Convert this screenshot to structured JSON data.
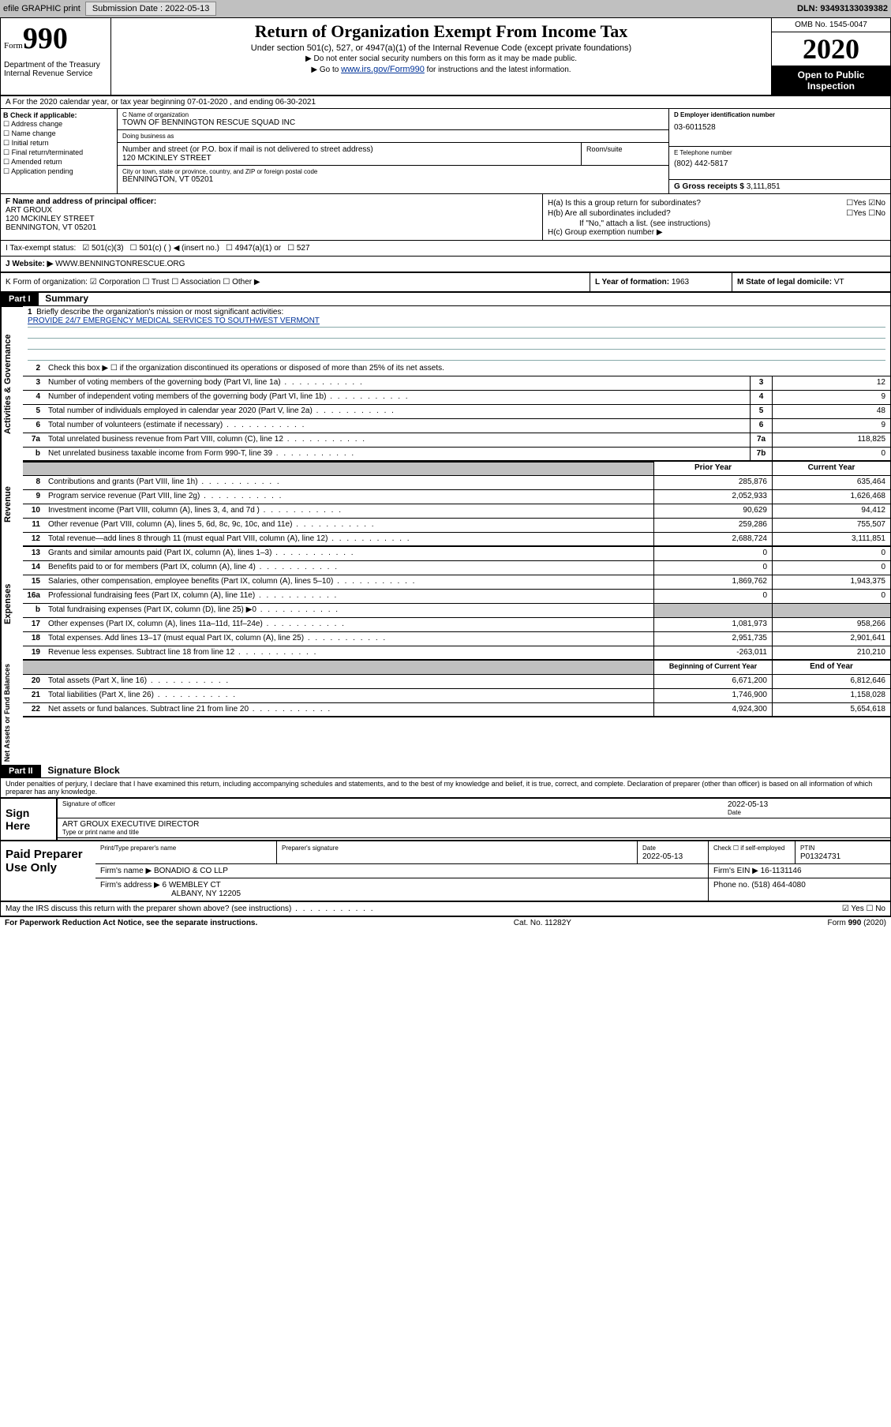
{
  "toolbar": {
    "efile": "efile GRAPHIC print",
    "submission_label": "Submission Date : 2022-05-13",
    "dln_label": "DLN:",
    "dln": "93493133039382"
  },
  "header": {
    "form_word": "Form",
    "form_num": "990",
    "dept": "Department of the Treasury\nInternal Revenue Service",
    "title": "Return of Organization Exempt From Income Tax",
    "subtitle": "Under section 501(c), 527, or 4947(a)(1) of the Internal Revenue Code (except private foundations)",
    "note1": "▶ Do not enter social security numbers on this form as it may be made public.",
    "note2_pre": "▶ Go to ",
    "note2_link": "www.irs.gov/Form990",
    "note2_post": " for instructions and the latest information.",
    "omb": "OMB No. 1545-0047",
    "year": "2020",
    "open": "Open to Public Inspection"
  },
  "line_a": "A For the 2020 calendar year, or tax year beginning 07-01-2020   , and ending 06-30-2021",
  "block_b": {
    "title": "B Check if applicable:",
    "opts": [
      "Address change",
      "Name change",
      "Initial return",
      "Final return/terminated",
      "Amended return",
      "Application pending"
    ]
  },
  "block_c": {
    "name_lbl": "C Name of organization",
    "name": "TOWN OF BENNINGTON RESCUE SQUAD INC",
    "dba_lbl": "Doing business as",
    "dba": "",
    "addr_lbl": "Number and street (or P.O. box if mail is not delivered to street address)",
    "room_lbl": "Room/suite",
    "addr": "120 MCKINLEY STREET",
    "city_lbl": "City or town, state or province, country, and ZIP or foreign postal code",
    "city": "BENNINGTON, VT  05201"
  },
  "block_d": {
    "ein_lbl": "D Employer identification number",
    "ein": "03-6011528",
    "phone_lbl": "E Telephone number",
    "phone": "(802) 442-5817",
    "gross_lbl": "G Gross receipts $",
    "gross": "3,111,851"
  },
  "block_f": {
    "lbl": "F Name and address of principal officer:",
    "name": "ART GROUX",
    "addr1": "120 MCKINLEY STREET",
    "addr2": "BENNINGTON, VT  05201"
  },
  "block_h": {
    "ha": "H(a)  Is this a group return for subordinates?",
    "ha_ans": "☐Yes ☑No",
    "hb": "H(b)  Are all subordinates included?",
    "hb_ans": "☐Yes ☐No",
    "hb_note": "If \"No,\" attach a list. (see instructions)",
    "hc": "H(c)  Group exemption number ▶"
  },
  "tax_exempt": {
    "lbl": "I  Tax-exempt status:",
    "o1": "501(c)(3)",
    "o2": "501(c) (   ) ◀ (insert no.)",
    "o3": "4947(a)(1) or",
    "o4": "527"
  },
  "website": {
    "lbl": "J  Website: ▶",
    "val": "WWW.BENNINGTONRESCUE.ORG"
  },
  "row_klm": {
    "k": "K Form of organization:  ☑ Corporation  ☐ Trust  ☐ Association  ☐ Other ▶",
    "l_lbl": "L Year of formation:",
    "l_val": "1963",
    "m_lbl": "M State of legal domicile:",
    "m_val": "VT"
  },
  "part1": {
    "hdr": "Part I",
    "title": "Summary"
  },
  "mission": {
    "num": "1",
    "lbl": "Briefly describe the organization's mission or most significant activities:",
    "text": "PROVIDE 24/7 EMERGENCY MEDICAL SERVICES TO SOUTHWEST VERMONT"
  },
  "line2": "Check this box ▶ ☐  if the organization discontinued its operations or disposed of more than 25% of its net assets.",
  "gov_rows": [
    {
      "n": "3",
      "d": "Number of voting members of the governing body (Part VI, line 1a)",
      "box": "3",
      "v": "12"
    },
    {
      "n": "4",
      "d": "Number of independent voting members of the governing body (Part VI, line 1b)",
      "box": "4",
      "v": "9"
    },
    {
      "n": "5",
      "d": "Total number of individuals employed in calendar year 2020 (Part V, line 2a)",
      "box": "5",
      "v": "48"
    },
    {
      "n": "6",
      "d": "Total number of volunteers (estimate if necessary)",
      "box": "6",
      "v": "9"
    },
    {
      "n": "7a",
      "d": "Total unrelated business revenue from Part VIII, column (C), line 12",
      "box": "7a",
      "v": "118,825"
    },
    {
      "n": "b",
      "d": "Net unrelated business taxable income from Form 990-T, line 39",
      "box": "7b",
      "v": "0"
    }
  ],
  "rev_hdr": {
    "prior": "Prior Year",
    "current": "Current Year"
  },
  "rev_rows": [
    {
      "n": "8",
      "d": "Contributions and grants (Part VIII, line 1h)",
      "p": "285,876",
      "c": "635,464"
    },
    {
      "n": "9",
      "d": "Program service revenue (Part VIII, line 2g)",
      "p": "2,052,933",
      "c": "1,626,468"
    },
    {
      "n": "10",
      "d": "Investment income (Part VIII, column (A), lines 3, 4, and 7d )",
      "p": "90,629",
      "c": "94,412"
    },
    {
      "n": "11",
      "d": "Other revenue (Part VIII, column (A), lines 5, 6d, 8c, 9c, 10c, and 11e)",
      "p": "259,286",
      "c": "755,507"
    },
    {
      "n": "12",
      "d": "Total revenue—add lines 8 through 11 (must equal Part VIII, column (A), line 12)",
      "p": "2,688,724",
      "c": "3,111,851"
    }
  ],
  "exp_rows": [
    {
      "n": "13",
      "d": "Grants and similar amounts paid (Part IX, column (A), lines 1–3)",
      "p": "0",
      "c": "0"
    },
    {
      "n": "14",
      "d": "Benefits paid to or for members (Part IX, column (A), line 4)",
      "p": "0",
      "c": "0"
    },
    {
      "n": "15",
      "d": "Salaries, other compensation, employee benefits (Part IX, column (A), lines 5–10)",
      "p": "1,869,762",
      "c": "1,943,375"
    },
    {
      "n": "16a",
      "d": "Professional fundraising fees (Part IX, column (A), line 11e)",
      "p": "0",
      "c": "0"
    },
    {
      "n": "b",
      "d": "Total fundraising expenses (Part IX, column (D), line 25) ▶0",
      "p": "",
      "c": "",
      "shade": true
    },
    {
      "n": "17",
      "d": "Other expenses (Part IX, column (A), lines 11a–11d, 11f–24e)",
      "p": "1,081,973",
      "c": "958,266"
    },
    {
      "n": "18",
      "d": "Total expenses. Add lines 13–17 (must equal Part IX, column (A), line 25)",
      "p": "2,951,735",
      "c": "2,901,641"
    },
    {
      "n": "19",
      "d": "Revenue less expenses. Subtract line 18 from line 12",
      "p": "-263,011",
      "c": "210,210"
    }
  ],
  "na_hdr": {
    "begin": "Beginning of Current Year",
    "end": "End of Year"
  },
  "na_rows": [
    {
      "n": "20",
      "d": "Total assets (Part X, line 16)",
      "p": "6,671,200",
      "c": "6,812,646"
    },
    {
      "n": "21",
      "d": "Total liabilities (Part X, line 26)",
      "p": "1,746,900",
      "c": "1,158,028"
    },
    {
      "n": "22",
      "d": "Net assets or fund balances. Subtract line 21 from line 20",
      "p": "4,924,300",
      "c": "5,654,618"
    }
  ],
  "part2": {
    "hdr": "Part II",
    "title": "Signature Block"
  },
  "penalty": "Under penalties of perjury, I declare that I have examined this return, including accompanying schedules and statements, and to the best of my knowledge and belief, it is true, correct, and complete. Declaration of preparer (other than officer) is based on all information of which preparer has any knowledge.",
  "sign": {
    "here": "Sign Here",
    "sig_lbl": "Signature of officer",
    "date": "2022-05-13",
    "date_lbl": "Date",
    "name": "ART GROUX  EXECUTIVE DIRECTOR",
    "name_lbl": "Type or print name and title"
  },
  "preparer": {
    "title": "Paid Preparer Use Only",
    "print_lbl": "Print/Type preparer's name",
    "sig_lbl": "Preparer's signature",
    "date_lbl": "Date",
    "date": "2022-05-13",
    "check_lbl": "Check ☐ if self-employed",
    "ptin_lbl": "PTIN",
    "ptin": "P01324731",
    "firm_name_lbl": "Firm's name     ▶",
    "firm_name": "BONADIO & CO LLP",
    "firm_ein_lbl": "Firm's EIN ▶",
    "firm_ein": "16-1131146",
    "firm_addr_lbl": "Firm's address ▶",
    "firm_addr1": "6 WEMBLEY CT",
    "firm_addr2": "ALBANY, NY  12205",
    "phone_lbl": "Phone no.",
    "phone": "(518) 464-4080"
  },
  "discuss": {
    "q": "May the IRS discuss this return with the preparer shown above? (see instructions)",
    "ans": "☑ Yes  ☐ No"
  },
  "footer": {
    "left": "For Paperwork Reduction Act Notice, see the separate instructions.",
    "mid": "Cat. No. 11282Y",
    "right": "Form 990 (2020)"
  },
  "side_labels": {
    "gov": "Activities & Governance",
    "rev": "Revenue",
    "exp": "Expenses",
    "na": "Net Assets or Fund Balances"
  }
}
